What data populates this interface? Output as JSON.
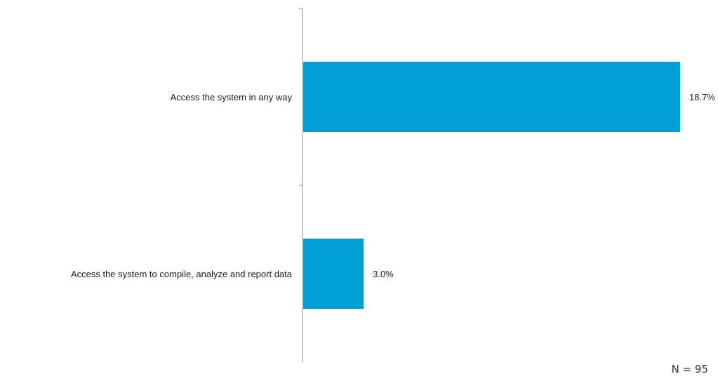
{
  "chart_data": {
    "type": "bar",
    "orientation": "horizontal",
    "categories": [
      "Access the system in any way",
      "Access the system to compile, analyze and report data"
    ],
    "values": [
      18.7,
      3.0
    ],
    "value_labels": [
      "18.7%",
      "3.0%"
    ],
    "xlim": [
      0,
      19.5
    ],
    "grid": false,
    "bar_color": "#00a0d6",
    "axis_color": "#8c8c8c"
  },
  "footnote": "N = 95"
}
